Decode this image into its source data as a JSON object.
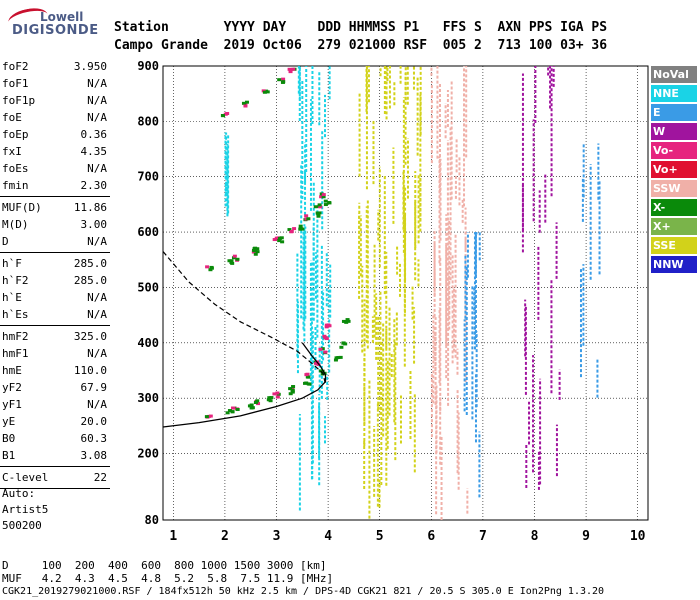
{
  "logo": {
    "line1": "Lowell",
    "line2": "DIGISONDE"
  },
  "header": {
    "row1": "Station       YYYY DAY    DDD HHMMSS P1   FFS S  AXN PPS IGA PS",
    "row2": "Campo Grande  2019 Oct06  279 021000 RSF  005 2  713 100 03+ 36"
  },
  "params": [
    [
      {
        "k": "foF2",
        "v": "3.950"
      },
      {
        "k": "foF1",
        "v": "N/A"
      },
      {
        "k": "foF1p",
        "v": "N/A"
      },
      {
        "k": "foE",
        "v": "N/A"
      },
      {
        "k": "foEp",
        "v": "0.36"
      },
      {
        "k": "fxI",
        "v": "4.35"
      },
      {
        "k": "foEs",
        "v": "N/A"
      },
      {
        "k": "fmin",
        "v": "2.30"
      }
    ],
    [
      {
        "k": "MUF(D)",
        "v": "11.86"
      },
      {
        "k": "M(D)",
        "v": "3.00"
      },
      {
        "k": "D",
        "v": "N/A"
      }
    ],
    [
      {
        "k": "h`F",
        "v": "285.0"
      },
      {
        "k": "h`F2",
        "v": "285.0"
      },
      {
        "k": "h`E",
        "v": "N/A"
      },
      {
        "k": "h`Es",
        "v": "N/A"
      }
    ],
    [
      {
        "k": "hmF2",
        "v": "325.0"
      },
      {
        "k": "hmF1",
        "v": "N/A"
      },
      {
        "k": "hmE",
        "v": "110.0"
      },
      {
        "k": "yF2",
        "v": "67.9"
      },
      {
        "k": "yF1",
        "v": "N/A"
      },
      {
        "k": "yE",
        "v": "20.0"
      },
      {
        "k": "B0",
        "v": "60.3"
      },
      {
        "k": "B1",
        "v": "3.08"
      }
    ],
    [
      {
        "k": "C-level",
        "v": "22"
      }
    ]
  ],
  "auto": {
    "line1": "Auto:",
    "line2": "Artist5",
    "line3": "500200"
  },
  "legend": [
    {
      "label": "NoVal",
      "color": "#808080"
    },
    {
      "label": "NNE",
      "color": "#1ad3e6"
    },
    {
      "label": "E",
      "color": "#3a9be6"
    },
    {
      "label": "W",
      "color": "#a0149e"
    },
    {
      "label": "Vo-",
      "color": "#e6247e"
    },
    {
      "label": "Vo+",
      "color": "#e01030"
    },
    {
      "label": "SSW",
      "color": "#f0b0a8"
    },
    {
      "label": "X-",
      "color": "#0a8a0a"
    },
    {
      "label": "X+",
      "color": "#7ab44a"
    },
    {
      "label": "SSE",
      "color": "#d2d21a"
    },
    {
      "label": "NNW",
      "color": "#2020c8"
    }
  ],
  "chart_data": {
    "type": "scatter",
    "xlabel": "",
    "ylabel": "",
    "xlim": [
      0.8,
      10.2
    ],
    "ylim": [
      80,
      900
    ],
    "xticks": [
      1,
      2,
      3,
      4,
      5,
      6,
      7,
      8,
      9,
      10
    ],
    "yticks": [
      200,
      300,
      400,
      500,
      600,
      700,
      800
    ],
    "ytick_extra": [
      80,
      900
    ],
    "grid": true,
    "traces": [
      {
        "name": "O-trace lower",
        "color": "#e6247e",
        "points": [
          [
            1.7,
            268
          ],
          [
            2.2,
            282
          ],
          [
            2.6,
            292
          ],
          [
            3.0,
            305
          ],
          [
            3.3,
            318
          ],
          [
            3.6,
            340
          ],
          [
            3.8,
            362
          ],
          [
            3.9,
            385
          ],
          [
            3.95,
            410
          ],
          [
            4.0,
            430
          ]
        ]
      },
      {
        "name": "X-trace lower",
        "color": "#0a8a0a",
        "points": [
          [
            2.1,
            275
          ],
          [
            2.5,
            285
          ],
          [
            2.9,
            297
          ],
          [
            3.3,
            310
          ],
          [
            3.6,
            325
          ],
          [
            3.9,
            345
          ],
          [
            4.2,
            370
          ],
          [
            4.3,
            395
          ],
          [
            4.35,
            440
          ]
        ]
      },
      {
        "name": "2-hop",
        "color": "#e6247e",
        "points": [
          [
            1.7,
            535
          ],
          [
            2.2,
            552
          ],
          [
            2.6,
            567
          ],
          [
            3.0,
            585
          ],
          [
            3.3,
            603
          ],
          [
            3.6,
            625
          ],
          [
            3.8,
            645
          ],
          [
            3.9,
            665
          ]
        ]
      },
      {
        "name": "2-hop X",
        "color": "#0a8a0a",
        "points": [
          [
            2.1,
            545
          ],
          [
            2.6,
            563
          ],
          [
            3.1,
            585
          ],
          [
            3.5,
            607
          ],
          [
            3.8,
            630
          ],
          [
            4.0,
            652
          ]
        ]
      },
      {
        "name": "3-hop",
        "color": "#e6247e",
        "points": [
          [
            2.0,
            812
          ],
          [
            2.4,
            830
          ],
          [
            2.8,
            852
          ],
          [
            3.1,
            872
          ],
          [
            3.3,
            892
          ]
        ]
      }
    ],
    "profile_solid": [
      [
        0.8,
        248
      ],
      [
        1.5,
        256
      ],
      [
        2.3,
        268
      ],
      [
        3.0,
        285
      ],
      [
        3.5,
        300
      ],
      [
        3.8,
        315
      ],
      [
        3.95,
        330
      ],
      [
        3.95,
        342
      ],
      [
        3.85,
        358
      ],
      [
        3.7,
        375
      ],
      [
        3.5,
        400
      ]
    ],
    "profile_dashed": [
      [
        0.8,
        565
      ],
      [
        1.3,
        510
      ],
      [
        1.8,
        470
      ],
      [
        2.3,
        438
      ],
      [
        2.9,
        410
      ],
      [
        3.4,
        385
      ],
      [
        3.7,
        362
      ],
      [
        3.9,
        345
      ],
      [
        3.95,
        325
      ]
    ]
  },
  "footer": {
    "d_row": "D     100  200  400  600  800 1000 1500 3000 [km]",
    "muf_row": "MUF   4.2  4.3  4.5  4.8  5.2  5.8  7.5 11.9 [MHz]",
    "info": "CGK21_2019279021000.RSF / 184fx512h 50 kHz 2.5 km / DPS-4D CGK21 821 / 20.5 S 305.0 E Ion2Png 1.3.20"
  }
}
